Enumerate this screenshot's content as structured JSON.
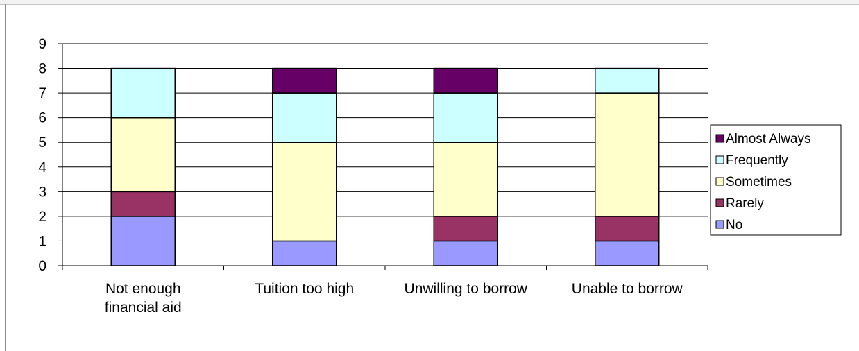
{
  "chart_data": {
    "type": "bar",
    "stacked": true,
    "categories": [
      "Not enough financial aid",
      "Tuition too high",
      "Unwilling to borrow",
      "Unable to borrow"
    ],
    "category_lines": [
      [
        "Not enough",
        "financial aid"
      ],
      [
        "Tuition too high"
      ],
      [
        "Unwilling to borrow"
      ],
      [
        "Unable to borrow"
      ]
    ],
    "series": [
      {
        "name": "No",
        "values": [
          2,
          1,
          1,
          1
        ],
        "color": "#9999ff"
      },
      {
        "name": "Rarely",
        "values": [
          1,
          0,
          1,
          1
        ],
        "color": "#993366"
      },
      {
        "name": "Sometimes",
        "values": [
          3,
          4,
          3,
          5
        ],
        "color": "#ffffcc"
      },
      {
        "name": "Frequently",
        "values": [
          2,
          2,
          2,
          1
        ],
        "color": "#ccffff"
      },
      {
        "name": "Almost Always",
        "values": [
          0,
          1,
          1,
          0
        ],
        "color": "#660066"
      }
    ],
    "ylim": [
      0,
      9
    ],
    "y_ticks": [
      0,
      1,
      2,
      3,
      4,
      5,
      6,
      7,
      8,
      9
    ],
    "grid": true,
    "legend_position": "right",
    "legend_order": [
      "Almost Always",
      "Frequently",
      "Sometimes",
      "Rarely",
      "No"
    ],
    "title": "",
    "xlabel": "",
    "ylabel": ""
  }
}
